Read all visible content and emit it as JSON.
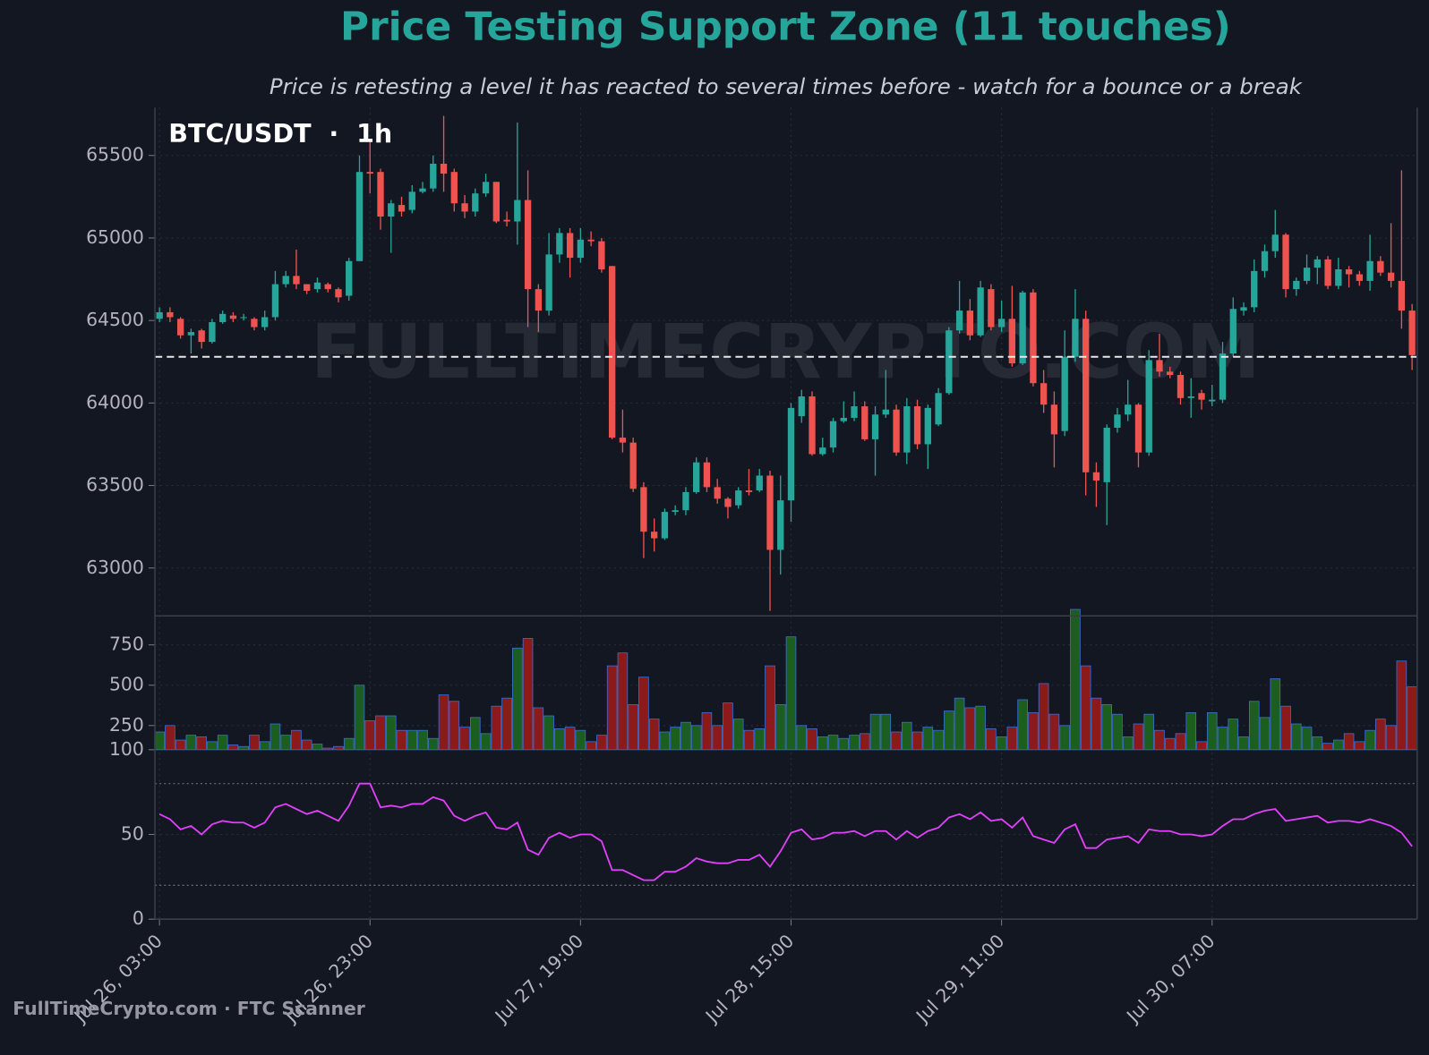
{
  "footer": "FullTimeCrypto.com · FTC Scanner",
  "chart_data": [
    {
      "type": "candlestick",
      "title": "Price Testing Support Zone (11 touches)",
      "subtitle": "Price is retesting a level it has reacted to several times before - watch for a bounce or a break",
      "label": "BTC/USDT  ·  1h",
      "watermark": "FULLTIMECRYPTO.COM",
      "up_color": "#26a69a",
      "down_color": "#ef5350",
      "support_color": "#e8e8e8",
      "support_level": 64280,
      "categories": [
        "Jul 26, 03:00",
        null,
        null,
        null,
        null,
        null,
        null,
        null,
        null,
        null,
        null,
        null,
        null,
        null,
        null,
        null,
        null,
        null,
        null,
        null,
        "Jul 26, 23:00",
        null,
        null,
        null,
        null,
        null,
        null,
        null,
        null,
        null,
        null,
        null,
        null,
        null,
        null,
        null,
        null,
        null,
        null,
        null,
        "Jul 27, 19:00",
        null,
        null,
        null,
        null,
        null,
        null,
        null,
        null,
        null,
        null,
        null,
        null,
        null,
        null,
        null,
        null,
        null,
        null,
        null,
        "Jul 28, 15:00",
        null,
        null,
        null,
        null,
        null,
        null,
        null,
        null,
        null,
        null,
        null,
        null,
        null,
        null,
        null,
        null,
        null,
        null,
        null,
        "Jul 29, 11:00",
        null,
        null,
        null,
        null,
        null,
        null,
        null,
        null,
        null,
        null,
        null,
        null,
        null,
        null,
        null,
        null,
        null,
        null,
        null,
        "Jul 30, 07:00",
        null,
        null,
        null,
        null,
        null,
        null,
        null,
        null,
        null,
        null,
        null,
        null,
        null,
        null,
        null,
        null,
        null,
        null,
        null
      ],
      "open": [
        64510,
        64550,
        64510,
        64410,
        64440,
        64370,
        64490,
        64530,
        64515,
        64510,
        64460,
        64520,
        64720,
        64770,
        64720,
        64690,
        64720,
        64690,
        64650,
        64860,
        65400,
        65400,
        65130,
        65200,
        65170,
        65280,
        65300,
        65450,
        65400,
        65210,
        65160,
        65270,
        65340,
        65110,
        65100,
        65230,
        64690,
        64560,
        64900,
        65030,
        64880,
        64990,
        64980,
        64830,
        63790,
        63760,
        63490,
        63220,
        63180,
        63340,
        63350,
        63460,
        63640,
        63490,
        63420,
        63380,
        63470,
        63470,
        63560,
        63110,
        63410,
        63920,
        64040,
        63690,
        63730,
        63890,
        63910,
        63980,
        63780,
        63930,
        63960,
        63700,
        63980,
        63750,
        63870,
        64060,
        64440,
        64560,
        64410,
        64690,
        64460,
        64510,
        64240,
        64670,
        64120,
        63990,
        63830,
        64280,
        64510,
        63580,
        63520,
        63850,
        63930,
        63990,
        63700,
        64260,
        64190,
        64170,
        64030,
        64060,
        64010,
        64020,
        64300,
        64560,
        64580,
        64800,
        64920,
        65020,
        64690,
        64740,
        64820,
        64870,
        64710,
        64810,
        64780,
        64740,
        64860,
        64790,
        64740,
        64560
      ],
      "high": [
        64580,
        64580,
        64520,
        64450,
        64450,
        64510,
        64560,
        64550,
        64540,
        64520,
        64560,
        64800,
        64800,
        64930,
        64720,
        64760,
        64730,
        64700,
        64880,
        65500,
        65600,
        65420,
        65230,
        65250,
        65320,
        65340,
        65500,
        65740,
        65420,
        65260,
        65300,
        65390,
        65340,
        65160,
        65700,
        65410,
        64720,
        65030,
        65060,
        65060,
        65060,
        65040,
        65000,
        64830,
        63960,
        63790,
        63520,
        63300,
        63360,
        63380,
        63490,
        63670,
        63670,
        63540,
        63430,
        63490,
        63600,
        63600,
        63590,
        63560,
        64000,
        64080,
        64070,
        63790,
        63910,
        64010,
        64070,
        64010,
        63980,
        64200,
        63990,
        64030,
        64020,
        63990,
        64090,
        64460,
        64740,
        64630,
        64740,
        64720,
        64620,
        64710,
        64680,
        64690,
        64200,
        64070,
        64440,
        64690,
        64560,
        63640,
        63870,
        63970,
        64140,
        64000,
        64320,
        64420,
        64220,
        64190,
        64150,
        64080,
        64110,
        64370,
        64640,
        64610,
        64870,
        64960,
        65170,
        65030,
        64760,
        64900,
        64890,
        64890,
        64880,
        64830,
        64800,
        65020,
        64890,
        65090,
        65410,
        64600
      ],
      "low": [
        64490,
        64490,
        64390,
        64300,
        64330,
        64360,
        64480,
        64490,
        64500,
        64440,
        64440,
        64500,
        64700,
        64690,
        64660,
        64670,
        64670,
        64610,
        64620,
        64860,
        65270,
        65050,
        64910,
        65130,
        65150,
        65270,
        65280,
        65280,
        65160,
        65120,
        65130,
        65250,
        65090,
        65070,
        64960,
        64460,
        64430,
        64530,
        64850,
        64760,
        64850,
        64950,
        64790,
        63780,
        63700,
        63460,
        63060,
        63100,
        63170,
        63320,
        63320,
        63450,
        63460,
        63390,
        63300,
        63360,
        63440,
        63460,
        62740,
        62960,
        63280,
        63880,
        63680,
        63680,
        63700,
        63880,
        63890,
        63770,
        63560,
        63910,
        63680,
        63630,
        63720,
        63600,
        63860,
        64050,
        64420,
        64380,
        64400,
        64440,
        64430,
        64220,
        64230,
        64100,
        63940,
        63610,
        63800,
        64250,
        63440,
        63370,
        63260,
        63820,
        63890,
        63610,
        63680,
        64160,
        64150,
        63990,
        63910,
        63960,
        63980,
        64000,
        64280,
        64530,
        64550,
        64760,
        64880,
        64640,
        64650,
        64720,
        64720,
        64690,
        64690,
        64700,
        64710,
        64680,
        64770,
        64700,
        64450,
        64200
      ],
      "close": [
        64550,
        64520,
        64410,
        64430,
        64370,
        64490,
        64540,
        64510,
        64520,
        64460,
        64520,
        64720,
        64770,
        64720,
        64680,
        64730,
        64690,
        64640,
        64860,
        65400,
        65390,
        65130,
        65210,
        65160,
        65280,
        65300,
        65450,
        65390,
        65210,
        65160,
        65270,
        65340,
        65100,
        65100,
        65230,
        64690,
        64560,
        64900,
        65030,
        64880,
        64990,
        64980,
        64810,
        63790,
        63760,
        63480,
        63220,
        63180,
        63340,
        63350,
        63460,
        63640,
        63490,
        63420,
        63370,
        63470,
        63460,
        63560,
        63110,
        63410,
        63970,
        64040,
        63690,
        63730,
        63890,
        63910,
        63980,
        63780,
        63930,
        63960,
        63700,
        63980,
        63750,
        63970,
        64060,
        64440,
        64560,
        64410,
        64700,
        64460,
        64510,
        64240,
        64670,
        64120,
        63990,
        63810,
        64280,
        64510,
        63580,
        63530,
        63850,
        63930,
        63990,
        63700,
        64260,
        64190,
        64170,
        64030,
        64040,
        64020,
        64020,
        64300,
        64570,
        64580,
        64800,
        64920,
        65020,
        64690,
        64740,
        64820,
        64870,
        64710,
        64810,
        64780,
        64740,
        64860,
        64790,
        64740,
        64560,
        64290
      ],
      "ylim": [
        62710,
        65790
      ],
      "yticks": [
        63000,
        63500,
        64000,
        64500,
        65000,
        65500
      ],
      "grid": true
    },
    {
      "type": "bar",
      "up_color": "#1b5e20",
      "down_color": "#8b1a1a",
      "edge_color": "#3b6fd6",
      "values": [
        210,
        250,
        160,
        190,
        180,
        150,
        190,
        130,
        120,
        190,
        150,
        260,
        190,
        220,
        160,
        135,
        110,
        120,
        170,
        500,
        280,
        310,
        310,
        220,
        220,
        220,
        170,
        440,
        400,
        240,
        300,
        200,
        370,
        420,
        730,
        790,
        360,
        310,
        230,
        240,
        220,
        150,
        190,
        620,
        700,
        380,
        550,
        290,
        210,
        240,
        270,
        250,
        330,
        250,
        390,
        290,
        220,
        230,
        620,
        380,
        800,
        250,
        230,
        180,
        190,
        170,
        190,
        200,
        320,
        320,
        210,
        270,
        210,
        240,
        220,
        340,
        420,
        360,
        370,
        230,
        180,
        240,
        410,
        330,
        510,
        320,
        250,
        970,
        620,
        420,
        380,
        320,
        180,
        260,
        320,
        220,
        170,
        200,
        330,
        150,
        330,
        240,
        290,
        180,
        400,
        300,
        540,
        370,
        260,
        240,
        180,
        140,
        160,
        200,
        150,
        220,
        290,
        250,
        650,
        490
      ],
      "ylim": [
        100,
        930
      ],
      "yticks": [
        100,
        250,
        500,
        750
      ],
      "grid": true
    },
    {
      "type": "line",
      "color": "#e040fb",
      "values": [
        62,
        59,
        53,
        55,
        50,
        56,
        58,
        57,
        57,
        54,
        57,
        66,
        68,
        65,
        62,
        64,
        61,
        58,
        67,
        80,
        80,
        66,
        67,
        66,
        68,
        68,
        72,
        70,
        61,
        58,
        61,
        63,
        54,
        53,
        57,
        41,
        38,
        48,
        51,
        48,
        50,
        50,
        46,
        29,
        29,
        26,
        23,
        23,
        28,
        28,
        31,
        36,
        34,
        33,
        33,
        35,
        35,
        38,
        31,
        40,
        51,
        53,
        47,
        48,
        51,
        51,
        52,
        49,
        52,
        52,
        47,
        52,
        48,
        52,
        54,
        60,
        62,
        59,
        63,
        58,
        59,
        54,
        60,
        49,
        47,
        45,
        53,
        56,
        42,
        42,
        47,
        48,
        49,
        45,
        53,
        52,
        52,
        50,
        50,
        49,
        50,
        55,
        59,
        59,
        62,
        64,
        65,
        58,
        59,
        60,
        61,
        57,
        58,
        58,
        57,
        59,
        57,
        55,
        51,
        43
      ],
      "levels": [
        20,
        80
      ],
      "ylim": [
        0,
        100
      ],
      "yticks": [
        0,
        50
      ],
      "grid": true
    }
  ]
}
